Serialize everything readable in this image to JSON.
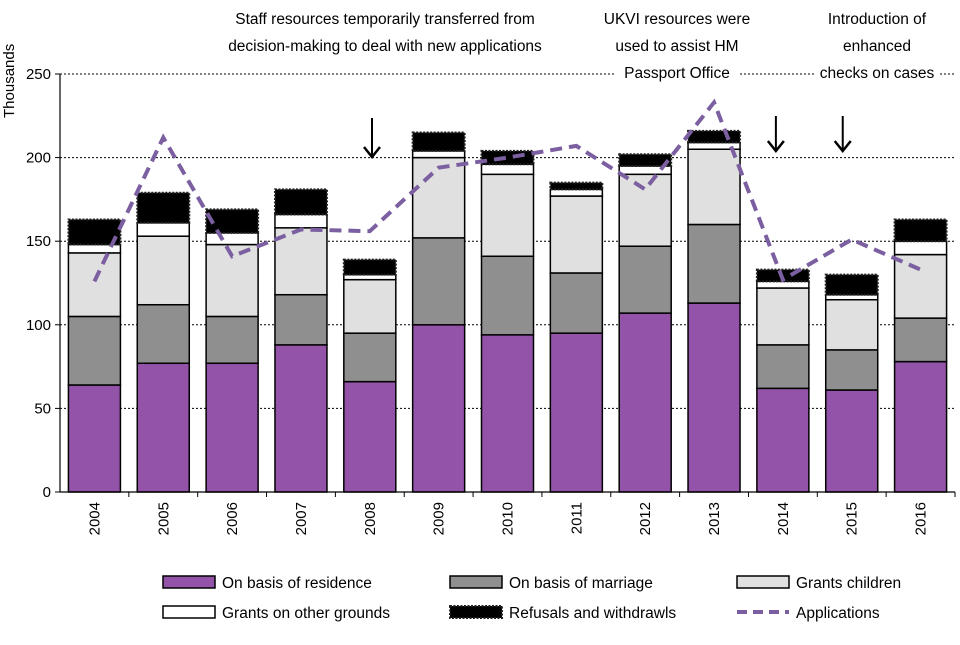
{
  "chart_data": {
    "type": "bar",
    "stacked": true,
    "title": "",
    "xlabel": "",
    "ylabel": "Thousands",
    "ylim": [
      0,
      250
    ],
    "yticks": [
      0,
      50,
      100,
      150,
      200,
      250
    ],
    "grid": "horizontal dotted",
    "legend_position": "bottom",
    "categories": [
      "2004",
      "2005",
      "2006",
      "2007",
      "2008",
      "2009",
      "2010",
      "2011",
      "2012",
      "2013",
      "2014",
      "2015",
      "2016"
    ],
    "series": [
      {
        "name": "On basis of residence",
        "color": "#9353a8",
        "values": [
          64,
          77,
          77,
          88,
          66,
          100,
          94,
          95,
          107,
          113,
          62,
          61,
          78
        ]
      },
      {
        "name": "On basis of marriage",
        "color": "#8f8f8f",
        "values": [
          41,
          35,
          28,
          30,
          29,
          52,
          47,
          36,
          40,
          47,
          26,
          24,
          26
        ]
      },
      {
        "name": "Grants children",
        "color": "#e0e0e0",
        "values": [
          38,
          41,
          43,
          40,
          32,
          48,
          49,
          46,
          43,
          45,
          34,
          30,
          38
        ]
      },
      {
        "name": "Grants on other grounds",
        "color": "#ffffff",
        "values": [
          5,
          8,
          7,
          8,
          3,
          4,
          6,
          4,
          5,
          4,
          4,
          3,
          8
        ]
      },
      {
        "name": "Refusals and withdrawls",
        "color": "#000000",
        "values": [
          15,
          18,
          14,
          15,
          9,
          11,
          8,
          4,
          7,
          7,
          7,
          12,
          13
        ]
      }
    ],
    "line_series": {
      "name": "Applications",
      "color": "#7b5fa0",
      "style": "dashed",
      "values": [
        126,
        212,
        141,
        157,
        156,
        194,
        200,
        207,
        181,
        233,
        127,
        151,
        133
      ]
    },
    "annotations": [
      {
        "lines": [
          "Staff resources temporarily transferred from",
          "decision-making to deal with new applications"
        ],
        "arrow_at": "2008"
      },
      {
        "lines": [
          "UKVI resources were",
          "used to assist HM",
          "Passport Office"
        ],
        "arrow_at": "2014"
      },
      {
        "lines": [
          "Introduction of",
          "enhanced",
          "checks on cases"
        ],
        "arrow_at": "2015"
      }
    ]
  }
}
